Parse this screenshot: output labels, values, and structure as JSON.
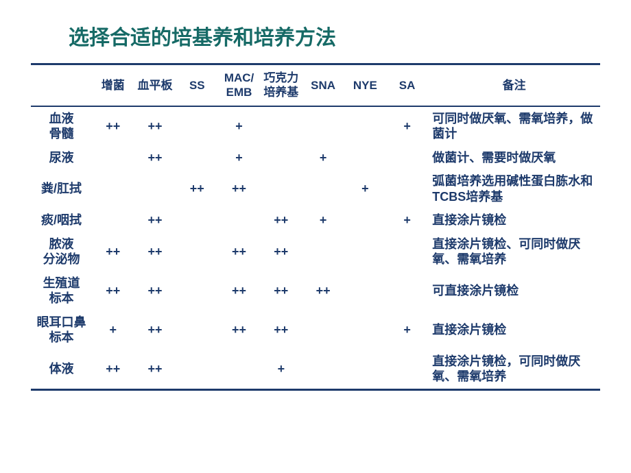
{
  "colors": {
    "title": "#166a66",
    "text": "#1d3a6b",
    "border": "#1d3a6b"
  },
  "title": "选择合适的培基养和培养方法",
  "columns": [
    "",
    "增菌",
    "血平板",
    "SS",
    "MAC/\nEMB",
    "巧克力\n培养基",
    "SNA",
    "NYE",
    "SA",
    "备注"
  ],
  "rows": [
    {
      "label": "血液\n骨髓",
      "cells": [
        "++",
        "++",
        "",
        "+",
        "",
        "",
        "",
        "+"
      ],
      "remark": "可同时做厌氧、需氧培养，做菌计"
    },
    {
      "label": "尿液",
      "cells": [
        "",
        "++",
        "",
        "+",
        "",
        "+",
        "",
        ""
      ],
      "remark": "做菌计、需要时做厌氧"
    },
    {
      "label": "粪/肛拭",
      "cells": [
        "",
        "",
        "++",
        "++",
        "",
        "",
        "+",
        ""
      ],
      "remark": "弧菌培养选用碱性蛋白胨水和TCBS培养基"
    },
    {
      "label": "痰/咽拭",
      "cells": [
        "",
        "++",
        "",
        "",
        "++",
        "+",
        "",
        "+"
      ],
      "remark": "直接涂片镜检"
    },
    {
      "label": "脓液\n分泌物",
      "cells": [
        "++",
        "++",
        "",
        "++",
        "++",
        "",
        "",
        ""
      ],
      "remark": "直接涂片镜检、可同时做厌氧、需氧培养"
    },
    {
      "label": "生殖道\n标本",
      "cells": [
        "++",
        "++",
        "",
        "++",
        "++",
        "++",
        "",
        ""
      ],
      "remark": "可直接涂片镜检"
    },
    {
      "label": "眼耳口鼻\n标本",
      "cells": [
        "+",
        "++",
        "",
        "++",
        "++",
        "",
        "",
        "+"
      ],
      "remark": "直接涂片镜检"
    },
    {
      "label": "体液",
      "cells": [
        "++",
        "++",
        "",
        "",
        "+",
        "",
        "",
        ""
      ],
      "remark": "直接涂片镜检，可同时做厌氧、需氧培养"
    }
  ]
}
